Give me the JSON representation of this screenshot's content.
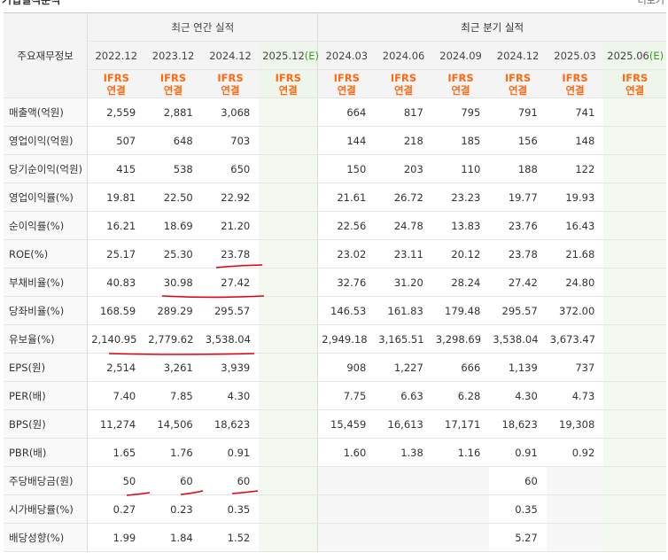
{
  "header": {
    "section_title": "기업실적분석",
    "more_link": "더보기"
  },
  "table": {
    "corner": "주요재무정보",
    "annual_title": "최근 연간 실적",
    "quarter_title": "최근 분기 실적",
    "periods": [
      {
        "label": "2022.12",
        "est": false
      },
      {
        "label": "2023.12",
        "est": false
      },
      {
        "label": "2024.12",
        "est": false
      },
      {
        "label": "2025.12",
        "est": true,
        "est_mark": "(E)"
      },
      {
        "label": "2024.03",
        "est": false
      },
      {
        "label": "2024.06",
        "est": false
      },
      {
        "label": "2024.09",
        "est": false
      },
      {
        "label": "2024.12",
        "est": false
      },
      {
        "label": "2025.03",
        "est": false
      },
      {
        "label": "2025.06",
        "est": true,
        "est_mark": "(E)"
      }
    ],
    "basis_line1": "IFRS",
    "basis_line2": "연결",
    "rows": [
      {
        "label": "매출액(억원)",
        "values": [
          "2,559",
          "2,881",
          "3,068",
          "",
          "664",
          "817",
          "795",
          "791",
          "741",
          ""
        ]
      },
      {
        "label": "영업이익(억원)",
        "values": [
          "507",
          "648",
          "703",
          "",
          "144",
          "218",
          "185",
          "156",
          "148",
          ""
        ]
      },
      {
        "label": "당기순이익(억원)",
        "values": [
          "415",
          "538",
          "650",
          "",
          "150",
          "203",
          "110",
          "188",
          "122",
          ""
        ]
      },
      {
        "label": "영업이익률(%)",
        "values": [
          "19.81",
          "22.50",
          "22.92",
          "",
          "21.61",
          "26.72",
          "23.23",
          "19.77",
          "19.93",
          ""
        ]
      },
      {
        "label": "순이익률(%)",
        "values": [
          "16.21",
          "18.69",
          "21.20",
          "",
          "22.56",
          "24.78",
          "13.83",
          "23.76",
          "16.43",
          ""
        ]
      },
      {
        "label": "ROE(%)",
        "values": [
          "25.17",
          "25.30",
          "23.78",
          "",
          "23.02",
          "23.11",
          "20.12",
          "23.78",
          "21.68",
          ""
        ]
      },
      {
        "label": "부채비율(%)",
        "values": [
          "40.83",
          "30.98",
          "27.42",
          "",
          "32.76",
          "31.20",
          "28.24",
          "27.42",
          "24.80",
          ""
        ]
      },
      {
        "label": "당좌비율(%)",
        "values": [
          "168.59",
          "289.29",
          "295.57",
          "",
          "146.53",
          "161.83",
          "179.48",
          "295.57",
          "372.00",
          ""
        ]
      },
      {
        "label": "유보율(%)",
        "values": [
          "2,140.95",
          "2,779.62",
          "3,538.04",
          "",
          "2,949.18",
          "3,165.51",
          "3,298.69",
          "3,538.04",
          "3,673.47",
          ""
        ]
      },
      {
        "label": "EPS(원)",
        "values": [
          "2,514",
          "3,261",
          "3,939",
          "",
          "908",
          "1,227",
          "666",
          "1,139",
          "737",
          ""
        ]
      },
      {
        "label": "PER(배)",
        "values": [
          "7.40",
          "7.85",
          "4.30",
          "",
          "7.75",
          "6.63",
          "6.28",
          "4.30",
          "4.73",
          ""
        ]
      },
      {
        "label": "BPS(원)",
        "values": [
          "11,274",
          "14,506",
          "18,623",
          "",
          "15,459",
          "16,613",
          "17,171",
          "18,623",
          "19,308",
          ""
        ]
      },
      {
        "label": "PBR(배)",
        "values": [
          "1.65",
          "1.76",
          "0.91",
          "",
          "1.60",
          "1.38",
          "1.16",
          "0.91",
          "0.92",
          ""
        ]
      },
      {
        "label": "주당배당금(원)",
        "values": [
          "50",
          "60",
          "60",
          "",
          "",
          "",
          "",
          "60",
          "",
          ""
        ]
      },
      {
        "label": "시가배당률(%)",
        "values": [
          "0.27",
          "0.23",
          "0.35",
          "",
          "",
          "",
          "",
          "0.35",
          "",
          ""
        ]
      },
      {
        "label": "배당성향(%)",
        "values": [
          "1.99",
          "1.84",
          "1.52",
          "",
          "",
          "",
          "",
          "5.27",
          "",
          ""
        ]
      }
    ]
  },
  "colors": {
    "basis_orange": "#ff6a13",
    "estimate_green": "#3b9a26",
    "estimate_bg": "#f3f8f0",
    "annotation_red": "#e0000f"
  }
}
